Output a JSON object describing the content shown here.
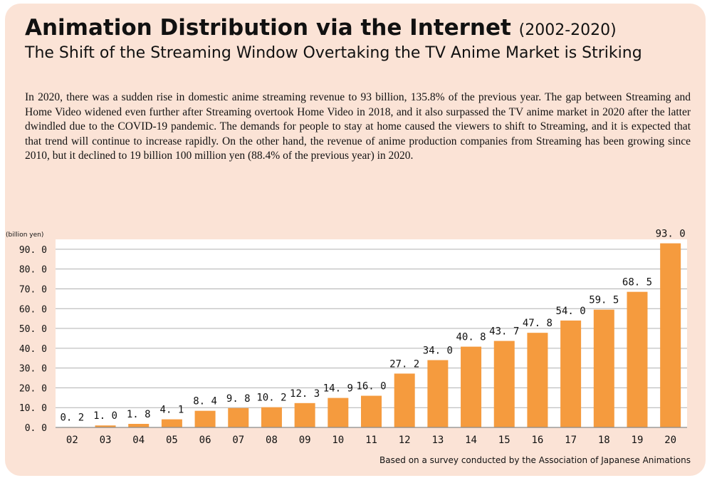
{
  "header": {
    "title": "Animation Distribution via the Internet",
    "years": "(2002-2020)",
    "subtitle": "The Shift of the Streaming Window Overtaking the TV Anime Market is Striking"
  },
  "body_text": "In 2020, there was a sudden rise in domestic anime streaming revenue to 93 billion, 135.8% of the previous year. The gap between Streaming and Home Video widened even further after Streaming overtook Home Video in 2018, and it also surpassed the TV anime market in 2020 after the latter dwindled due to the COVID-19 pandemic. The demands for people to stay at home caused the viewers to shift to Streaming, and it is expected that that trend will continue to increase rapidly. On the other hand, the revenue of anime production companies from Streaming has been growing since 2010, but it declined to 19 billion 100  million yen (88.4% of the previous year) in 2020.",
  "source_note": "Based on a survey conducted by the Association of Japanese Animations",
  "colors": {
    "background": "#fbe3d6",
    "bar": "#f59b3e",
    "plot_area": "#ffffff",
    "grid": "#b0b0b0"
  },
  "chart_data": {
    "type": "bar",
    "ylabel": "(billion yen)",
    "categories": [
      "02",
      "03",
      "04",
      "05",
      "06",
      "07",
      "08",
      "09",
      "10",
      "11",
      "12",
      "13",
      "14",
      "15",
      "16",
      "17",
      "18",
      "19",
      "20"
    ],
    "values": [
      0.2,
      1.0,
      1.8,
      4.1,
      8.4,
      9.8,
      10.2,
      12.3,
      14.9,
      16.0,
      27.2,
      34.0,
      40.8,
      43.7,
      47.8,
      54.0,
      59.5,
      68.5,
      93.0
    ],
    "value_labels": [
      "0. 2",
      "1. 0",
      "1. 8",
      "4. 1",
      "8. 4",
      "9. 8",
      "10. 2",
      "12. 3",
      "14. 9",
      "16. 0",
      "27. 2",
      "34. 0",
      "40. 8",
      "43. 7",
      "47. 8",
      "54. 0",
      "59. 5",
      "68. 5",
      "93. 0"
    ],
    "yticks": [
      0,
      10,
      20,
      30,
      40,
      50,
      60,
      70,
      80,
      90
    ],
    "ytick_labels": [
      "0. 0",
      "10. 0",
      "20. 0",
      "30. 0",
      "40. 0",
      "50. 0",
      "60. 0",
      "70. 0",
      "80. 0",
      "90. 0"
    ],
    "ylim": [
      0,
      95
    ],
    "grid": true
  }
}
